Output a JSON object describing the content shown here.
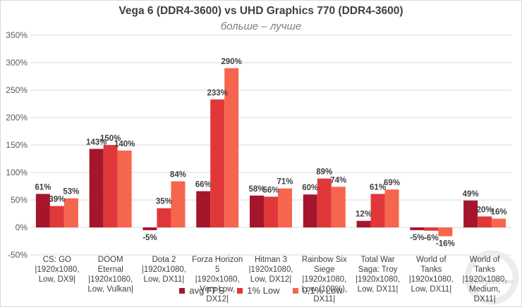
{
  "chart_data": {
    "type": "bar",
    "title": "Vega 6 (DDR4-3600) vs UHD Graphics 770 (DDR4-3600)",
    "subtitle": "больше – лучше",
    "categories": [
      [
        "CS: GO",
        "|1920x1080,",
        "Low, DX9|"
      ],
      [
        "DOOM",
        "Eternal",
        "|1920x1080,",
        "Low, Vulkan|"
      ],
      [
        "Dota 2",
        "|1920x1080,",
        "Low, DX11|"
      ],
      [
        "Forza Horizon",
        "5",
        "|1920x1080,",
        "Very Low,",
        "DX12|"
      ],
      [
        "Hitman 3",
        "|1920x1080,",
        "Low, DX12|"
      ],
      [
        "Rainbow Six",
        "Siege",
        "|1920x1080,",
        "Low (100%),",
        "DX11|"
      ],
      [
        "Total War",
        "Saga: Troy",
        "|1920x1080,",
        "Low, DX11|"
      ],
      [
        "World of",
        "Tanks",
        "|1920x1080,",
        "Low, DX11|"
      ],
      [
        "World of",
        "Tanks",
        "|1920x1080,",
        "Medium,",
        "DX11|"
      ]
    ],
    "series": [
      {
        "name": "avg FPS",
        "color": "#a5162c",
        "values": [
          61,
          143,
          -5,
          66,
          58,
          60,
          12,
          -5,
          49
        ]
      },
      {
        "name": "1% Low",
        "color": "#e0383a",
        "values": [
          39,
          150,
          35,
          233,
          56,
          89,
          61,
          -6,
          20
        ]
      },
      {
        "name": "0,1% Low",
        "color": "#f6664e",
        "values": [
          53,
          140,
          84,
          290,
          71,
          74,
          69,
          -16,
          16
        ]
      }
    ],
    "ylim": [
      -50,
      350
    ],
    "yticks": [
      -50,
      0,
      50,
      100,
      150,
      200,
      250,
      300,
      350
    ],
    "tick_suffix": "%",
    "grid": true,
    "legend_position": "bottom"
  },
  "legend": {
    "item_1": "avg FPS",
    "item_2": "1% Low",
    "item_3": "0,1% Low"
  },
  "watermark": "www.gecid.com"
}
